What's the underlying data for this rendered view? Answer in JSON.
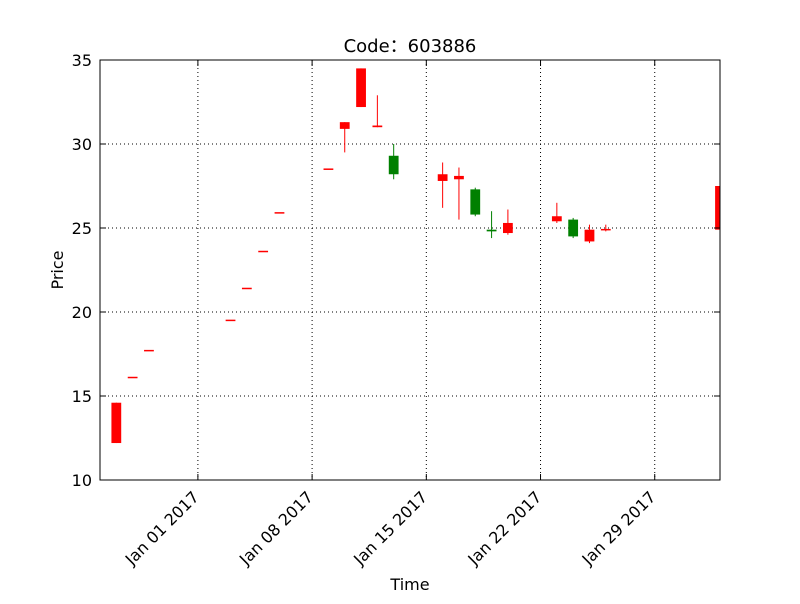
{
  "chart_data": {
    "type": "candlestick",
    "title": "Code：603886",
    "xlabel": "Time",
    "ylabel": "Price",
    "ylim": [
      10,
      35
    ],
    "xlim": [
      "2016-12-26",
      "2017-02-02"
    ],
    "y_ticks": [
      10,
      15,
      20,
      25,
      30,
      35
    ],
    "x_ticks": [
      {
        "date": "2017-01-01",
        "label": "Jan 01 2017"
      },
      {
        "date": "2017-01-08",
        "label": "Jan 08 2017"
      },
      {
        "date": "2017-01-15",
        "label": "Jan 15 2017"
      },
      {
        "date": "2017-01-22",
        "label": "Jan 22 2017"
      },
      {
        "date": "2017-01-29",
        "label": "Jan 29 2017"
      }
    ],
    "grid": true,
    "colors": {
      "up": "#ff0000",
      "down": "#008000"
    },
    "candles": [
      {
        "date": "2016-12-27",
        "open": 12.2,
        "close": 14.6,
        "high": 14.6,
        "low": 12.2
      },
      {
        "date": "2016-12-28",
        "open": 16.1,
        "close": 16.1,
        "high": 16.1,
        "low": 16.1
      },
      {
        "date": "2016-12-29",
        "open": 17.7,
        "close": 17.7,
        "high": 17.7,
        "low": 17.7
      },
      {
        "date": "2017-01-03",
        "open": 19.5,
        "close": 19.5,
        "high": 19.5,
        "low": 19.5
      },
      {
        "date": "2017-01-04",
        "open": 21.4,
        "close": 21.4,
        "high": 21.4,
        "low": 21.4
      },
      {
        "date": "2017-01-05",
        "open": 23.6,
        "close": 23.6,
        "high": 23.6,
        "low": 23.6
      },
      {
        "date": "2017-01-06",
        "open": 25.9,
        "close": 25.9,
        "high": 25.9,
        "low": 25.9
      },
      {
        "date": "2017-01-09",
        "open": 28.5,
        "close": 28.5,
        "high": 28.5,
        "low": 28.5
      },
      {
        "date": "2017-01-10",
        "open": 30.9,
        "close": 31.3,
        "high": 31.3,
        "low": 29.5
      },
      {
        "date": "2017-01-11",
        "open": 32.2,
        "close": 34.5,
        "high": 34.5,
        "low": 32.2
      },
      {
        "date": "2017-01-12",
        "open": 31.0,
        "close": 31.1,
        "high": 32.9,
        "low": 31.0
      },
      {
        "date": "2017-01-13",
        "open": 29.3,
        "close": 28.2,
        "high": 30.0,
        "low": 27.9
      },
      {
        "date": "2017-01-16",
        "open": 27.8,
        "close": 28.2,
        "high": 28.9,
        "low": 26.2
      },
      {
        "date": "2017-01-17",
        "open": 27.9,
        "close": 28.1,
        "high": 28.6,
        "low": 25.5
      },
      {
        "date": "2017-01-18",
        "open": 27.3,
        "close": 25.8,
        "high": 27.4,
        "low": 25.7
      },
      {
        "date": "2017-01-19",
        "open": 24.9,
        "close": 24.8,
        "high": 26.0,
        "low": 24.4
      },
      {
        "date": "2017-01-20",
        "open": 24.7,
        "close": 25.3,
        "high": 26.1,
        "low": 24.6
      },
      {
        "date": "2017-01-23",
        "open": 25.4,
        "close": 25.7,
        "high": 26.5,
        "low": 25.3
      },
      {
        "date": "2017-01-24",
        "open": 25.5,
        "close": 24.5,
        "high": 25.6,
        "low": 24.4
      },
      {
        "date": "2017-01-25",
        "open": 24.2,
        "close": 24.9,
        "high": 25.2,
        "low": 24.1
      },
      {
        "date": "2017-01-26",
        "open": 24.9,
        "close": 24.9,
        "high": 25.2,
        "low": 24.8
      },
      {
        "date": "2017-02-02",
        "open": 24.9,
        "close": 27.5,
        "high": 27.5,
        "low": 24.9
      }
    ]
  }
}
